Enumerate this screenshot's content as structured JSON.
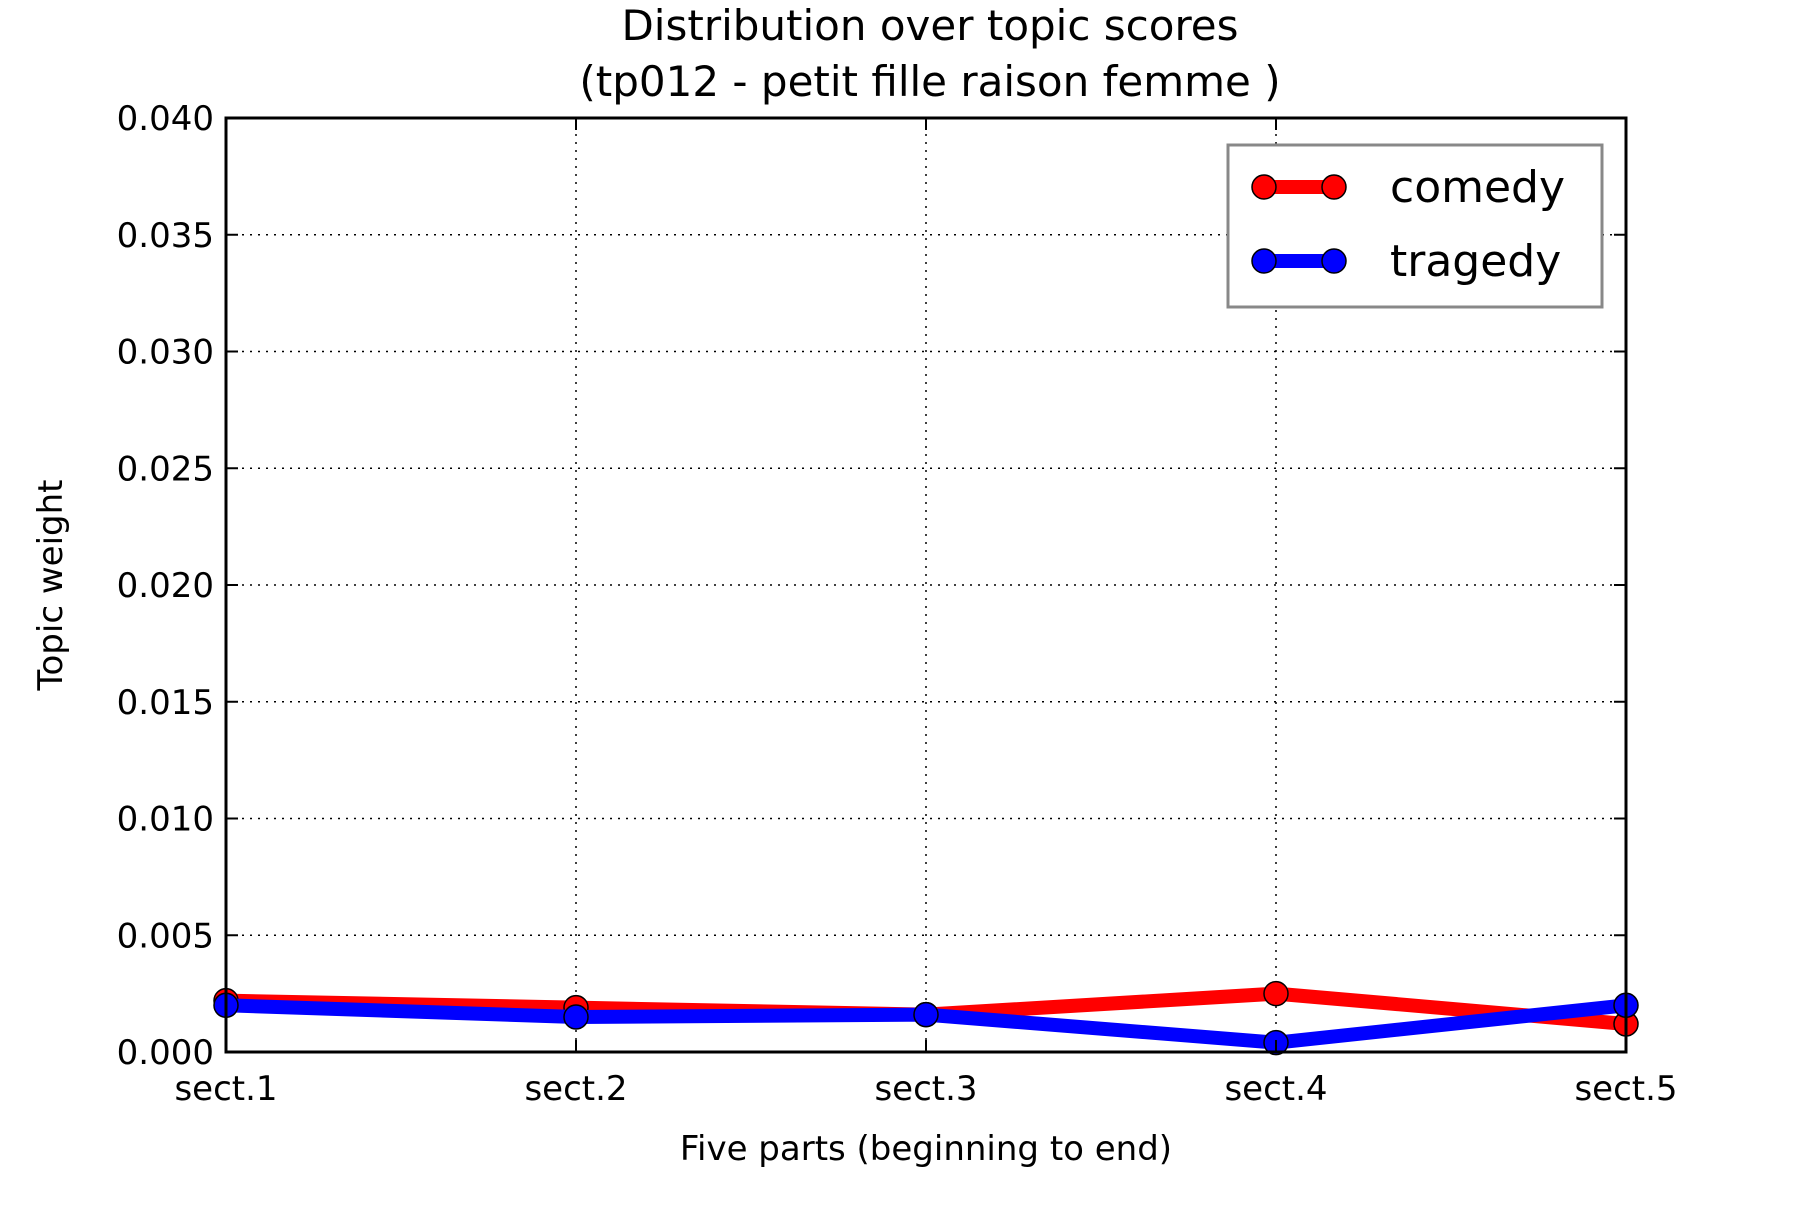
{
  "chart_data": {
    "type": "line",
    "title_line1": "Distribution over topic scores",
    "title_line2": "(tp012 - petit fille raison femme )",
    "xlabel": "Five parts (beginning to end)",
    "ylabel": "Topic weight",
    "categories": [
      "sect.1",
      "sect.2",
      "sect.3",
      "sect.4",
      "sect.5"
    ],
    "ylim": [
      0,
      0.04
    ],
    "yticks": [
      "0.000",
      "0.005",
      "0.010",
      "0.015",
      "0.020",
      "0.025",
      "0.030",
      "0.035",
      "0.040"
    ],
    "grid": true,
    "legend_position": "top-right",
    "series": [
      {
        "name": "comedy",
        "color": "#ff0000",
        "values": [
          0.0022,
          0.0019,
          0.0016,
          0.0025,
          0.0012
        ]
      },
      {
        "name": "tragedy",
        "color": "#0000ff",
        "values": [
          0.002,
          0.0015,
          0.0016,
          0.0004,
          0.002
        ]
      }
    ]
  }
}
